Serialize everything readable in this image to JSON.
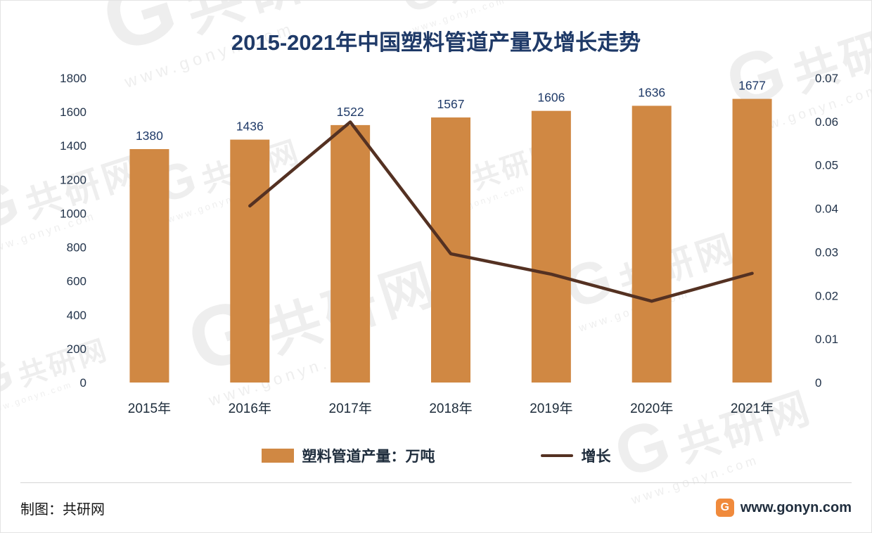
{
  "chart_data": {
    "type": "combo",
    "title": "2015-2021年中国塑料管道产量及增长走势",
    "categories": [
      "2015年",
      "2016年",
      "2017年",
      "2018年",
      "2019年",
      "2020年",
      "2021年"
    ],
    "series": [
      {
        "name": "塑料管道产量：万吨",
        "type": "bar",
        "axis": "left",
        "color": "#D08843",
        "values": [
          1380,
          1436,
          1522,
          1567,
          1606,
          1636,
          1677
        ]
      },
      {
        "name": "增长",
        "type": "line",
        "axis": "right",
        "color": "#543122",
        "values": [
          null,
          0.0406,
          0.0599,
          0.0296,
          0.0249,
          0.0187,
          0.0251
        ]
      }
    ],
    "left_axis": {
      "min": 0,
      "max": 1800,
      "ticks": [
        "0",
        "200",
        "400",
        "600",
        "800",
        "1000",
        "1200",
        "1400",
        "1600",
        "1800"
      ]
    },
    "right_axis": {
      "min": 0,
      "max": 0.07,
      "ticks": [
        "0",
        "0.01",
        "0.02",
        "0.03",
        "0.04",
        "0.05",
        "0.06",
        "0.07"
      ]
    },
    "grid": false,
    "legend_position": "bottom"
  },
  "footer": {
    "credit": "制图：共研网",
    "site": "www.gonyn.com",
    "logo_letter": "G"
  },
  "watermark": {
    "letter": "G",
    "brand": "共研网",
    "url": "www.gonyn.com"
  },
  "colors": {
    "bar": "#D08843",
    "line": "#543122",
    "title_text": "#1F3A68",
    "axis_text": "#22334A",
    "background": "#FFFFFF"
  }
}
